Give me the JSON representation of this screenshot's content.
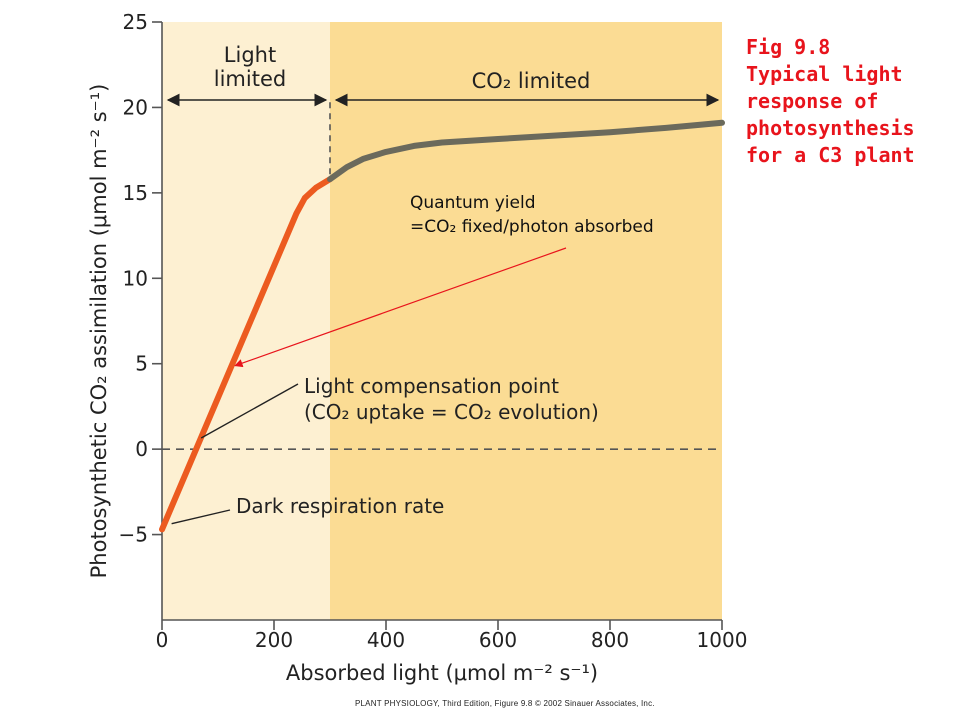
{
  "caption": {
    "lines": [
      "Fig 9.8",
      "Typical light",
      "response of",
      "photosynthesis",
      "for a C3 plant"
    ],
    "color": "#e8141c"
  },
  "credit": "PLANT PHYSIOLOGY, Third Edition, Figure 9.8  © 2002 Sinauer Associates, Inc.",
  "chart_data": {
    "type": "line",
    "xlabel": "Absorbed light (μmol m⁻² s⁻¹)",
    "ylabel": "Photosynthetic CO₂ assimilation (μmol m⁻² s⁻¹)",
    "xlim": [
      0,
      1000
    ],
    "ylim": [
      -10,
      25
    ],
    "xticks": [
      0,
      200,
      400,
      600,
      800,
      1000
    ],
    "yticks": [
      -5,
      0,
      5,
      10,
      15,
      20,
      25
    ],
    "ytick_labels": [
      "−5",
      "0",
      "5",
      "10",
      "15",
      "20",
      "25"
    ],
    "grid": false,
    "regions": [
      {
        "label_lines": [
          "Light",
          "limited"
        ],
        "x_range": [
          0,
          300
        ],
        "color": "#fdf0d2"
      },
      {
        "label": "CO₂ limited",
        "x_range": [
          300,
          1000
        ],
        "color": "#fbdc94"
      }
    ],
    "series": [
      {
        "segment": "light-limited",
        "color": "#ec5b20",
        "x": [
          0,
          240,
          255,
          275,
          300
        ],
        "y": [
          -4.7,
          13.8,
          14.7,
          15.3,
          15.8
        ]
      },
      {
        "segment": "co2-limited",
        "color": "#6b6a5c",
        "x": [
          300,
          330,
          360,
          400,
          450,
          500,
          550,
          600,
          700,
          800,
          900,
          1000
        ],
        "y": [
          15.8,
          16.5,
          17.0,
          17.4,
          17.75,
          17.95,
          18.05,
          18.15,
          18.35,
          18.55,
          18.8,
          19.1
        ]
      }
    ],
    "zero_line": {
      "y": 0,
      "style": "dashed"
    },
    "boundary_line": {
      "x": 300,
      "style": "dashed"
    },
    "annotations": [
      {
        "id": "light-compensation",
        "lines": [
          "Light compensation point",
          "(CO₂ uptake = CO₂ evolution)"
        ],
        "point": [
          70,
          0.3
        ]
      },
      {
        "id": "dark-respiration",
        "text": "Dark respiration rate",
        "point": [
          10,
          -4.6
        ]
      },
      {
        "id": "quantum-yield",
        "lines": [
          "Quantum yield",
          "=CO₂ fixed/photon absorbed"
        ],
        "arrow_to": [
          125,
          5
        ],
        "arrow_color": "#e8141c"
      }
    ]
  }
}
